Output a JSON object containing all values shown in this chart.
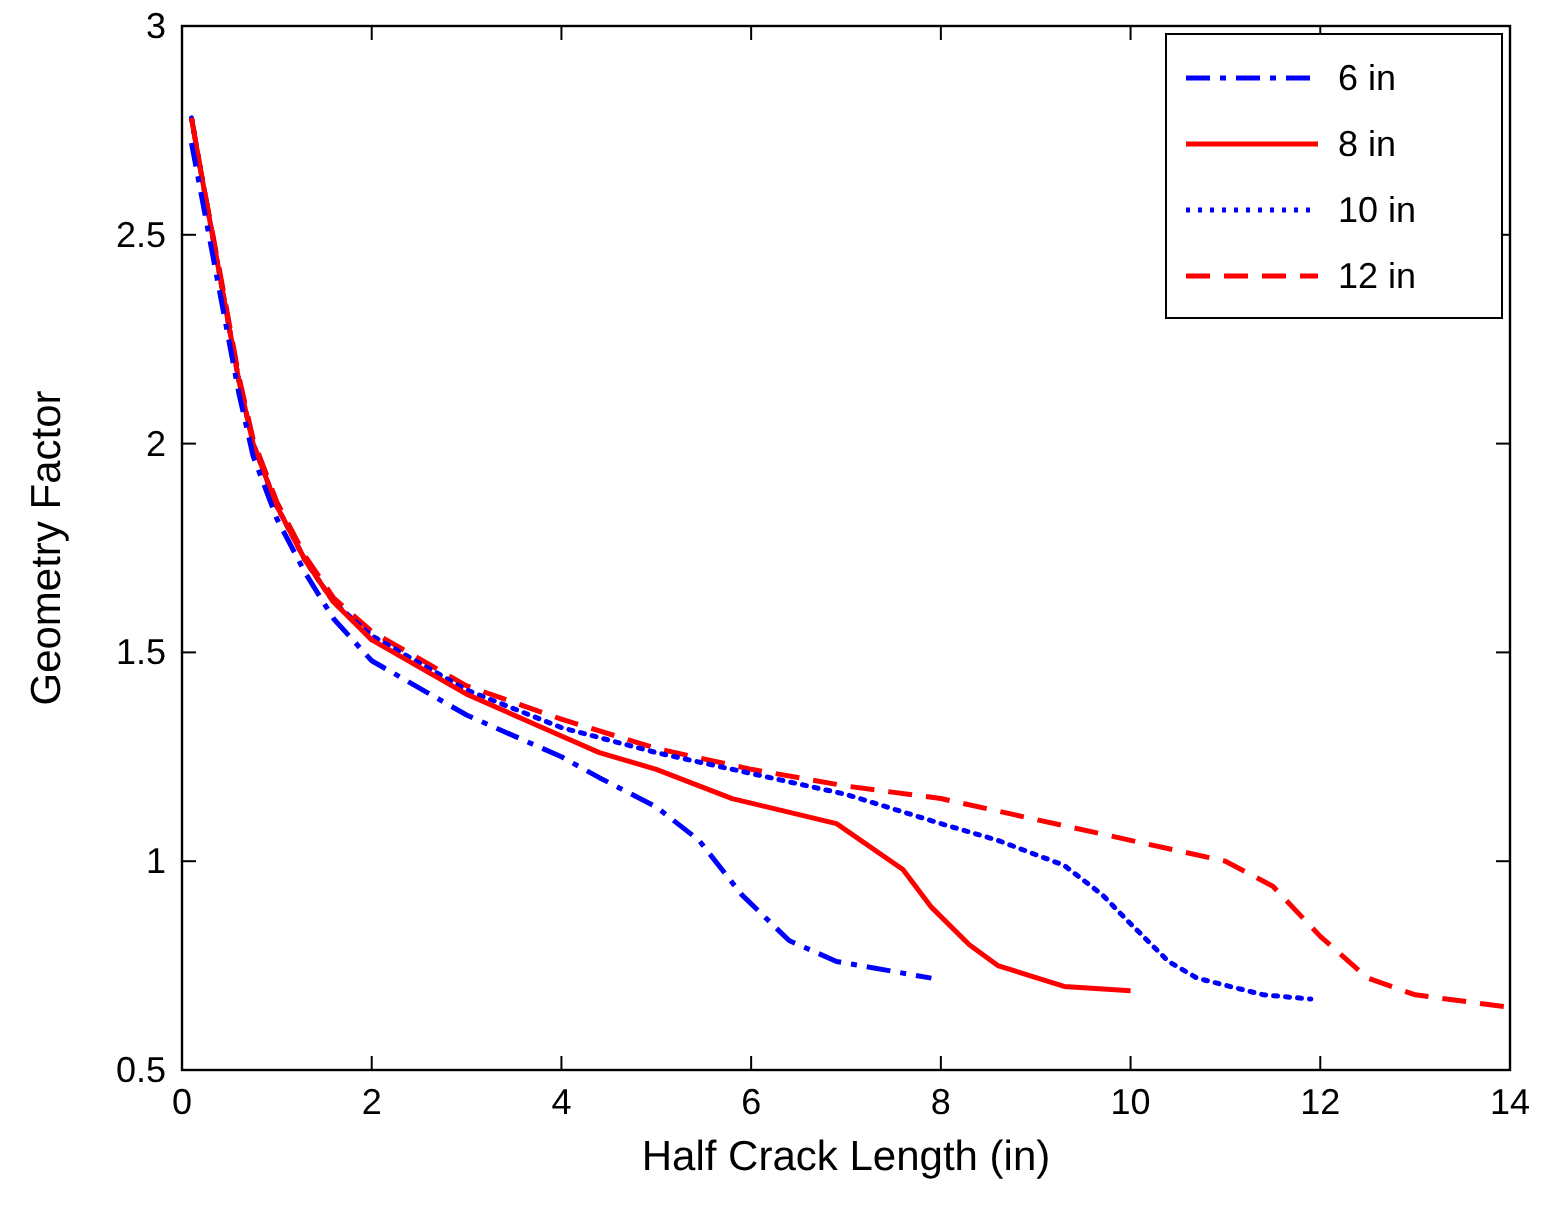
{
  "chart_data": {
    "type": "line",
    "xlabel": "Half Crack Length (in)",
    "ylabel": "Geometry Factor",
    "xlim": [
      0,
      14
    ],
    "ylim": [
      0.5,
      3
    ],
    "xticks": [
      0,
      2,
      4,
      6,
      8,
      10,
      12,
      14
    ],
    "yticks": [
      0.5,
      1,
      1.5,
      2,
      2.5,
      3
    ],
    "grid": false,
    "legend": "top right",
    "marker": "none",
    "series": [
      {
        "name": "6 in",
        "color": "#0000ff",
        "line_style": "dashdot",
        "x": [
          0.1,
          0.2,
          0.4,
          0.6,
          0.75,
          1,
          1.3,
          1.6,
          2,
          3,
          4,
          4.4,
          5,
          5.45,
          5.9,
          6.4,
          6.9,
          7.9
        ],
        "values": [
          2.72,
          2.6,
          2.36,
          2.12,
          1.97,
          1.82,
          1.69,
          1.58,
          1.48,
          1.35,
          1.25,
          1.2,
          1.13,
          1.05,
          0.92,
          0.81,
          0.76,
          0.72
        ]
      },
      {
        "name": "8 in",
        "color": "#ff0000",
        "line_style": "solid",
        "x": [
          0.1,
          0.2,
          0.4,
          0.6,
          0.75,
          1,
          1.3,
          1.6,
          2,
          3,
          4,
          4.4,
          5,
          5.8,
          6.9,
          7.6,
          7.9,
          8.3,
          8.6,
          9.3,
          10
        ],
        "values": [
          2.78,
          2.65,
          2.4,
          2.15,
          2,
          1.85,
          1.72,
          1.62,
          1.53,
          1.4,
          1.3,
          1.26,
          1.22,
          1.15,
          1.09,
          0.98,
          0.89,
          0.8,
          0.75,
          0.7,
          0.69
        ]
      },
      {
        "name": "10 in",
        "color": "#0000ff",
        "line_style": "dotted",
        "x": [
          0.1,
          0.2,
          0.4,
          0.6,
          0.75,
          1,
          1.3,
          1.6,
          2,
          3,
          4,
          5,
          6,
          7,
          8,
          8.6,
          9.3,
          9.7,
          10,
          10.4,
          10.7,
          11.4,
          11.9
        ],
        "values": [
          2.78,
          2.65,
          2.4,
          2.15,
          2,
          1.85,
          1.72,
          1.62,
          1.54,
          1.41,
          1.32,
          1.26,
          1.21,
          1.16,
          1.09,
          1.05,
          0.99,
          0.92,
          0.85,
          0.76,
          0.72,
          0.68,
          0.67
        ]
      },
      {
        "name": "12 in",
        "color": "#ff0000",
        "line_style": "dashed",
        "x": [
          0.1,
          0.2,
          0.4,
          0.6,
          0.75,
          1,
          1.3,
          1.6,
          2,
          3,
          4,
          5,
          6,
          7,
          8,
          9,
          10,
          11,
          11.5,
          12,
          12.5,
          13,
          14
        ],
        "values": [
          2.78,
          2.65,
          2.41,
          2.16,
          2.01,
          1.86,
          1.73,
          1.63,
          1.55,
          1.42,
          1.34,
          1.27,
          1.22,
          1.18,
          1.15,
          1.1,
          1.05,
          1,
          0.94,
          0.82,
          0.72,
          0.68,
          0.65
        ]
      }
    ]
  }
}
